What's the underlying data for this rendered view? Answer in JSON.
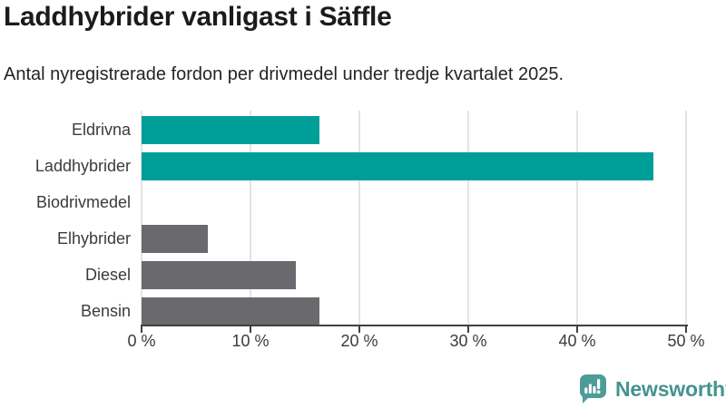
{
  "header": {
    "title": "Laddhybrider vanligast i Säffle",
    "subtitle": "Antal nyregistrerade fordon per drivmedel under tredje kvartalet 2025."
  },
  "chart_data": {
    "type": "bar",
    "orientation": "horizontal",
    "title": "Laddhybrider vanligast i Säffle",
    "subtitle": "Antal nyregistrerade fordon per drivmedel under tredje kvartalet 2025.",
    "categories": [
      "Eldrivna",
      "Laddhybrider",
      "Biodrivmedel",
      "Elhybrider",
      "Diesel",
      "Bensin"
    ],
    "values": [
      16.3,
      47.0,
      0,
      6.1,
      14.2,
      16.3
    ],
    "unit": "%",
    "bar_colors": [
      "#009e99",
      "#009e99",
      "#6a6a6e",
      "#6a6a6e",
      "#6a6a6e",
      "#6a6a6e"
    ],
    "xlim": [
      0,
      50
    ],
    "x_tick_values": [
      0,
      10,
      20,
      30,
      40,
      50
    ],
    "x_tick_labels": [
      "0 %",
      "10 %",
      "20 %",
      "30 %",
      "40 %",
      "50 %"
    ],
    "grid": true,
    "legend": false
  },
  "colors": {
    "highlight": "#009e99",
    "neutral": "#6a6a6e",
    "gridline": "#e4e4e4",
    "axis": "#404040",
    "logo": "#4d9c98"
  },
  "footer": {
    "brand": "Newsworthy"
  }
}
